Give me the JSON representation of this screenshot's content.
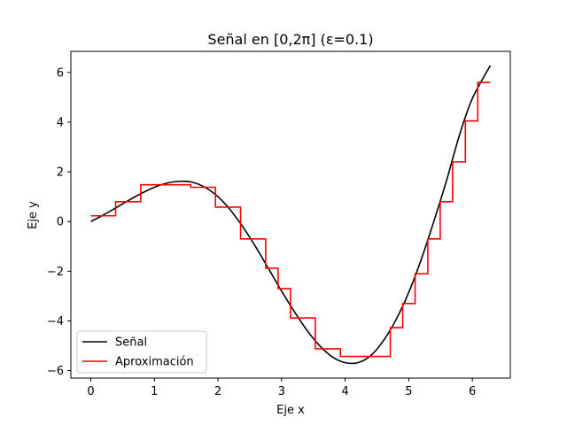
{
  "chart_data": {
    "type": "line",
    "title": "Señal en [0,2π] (ε=0.1)",
    "xlabel": "Eje x",
    "ylabel": "Eje y",
    "xlim": [
      -0.314,
      6.597
    ],
    "ylim": [
      -6.3,
      6.85
    ],
    "xticks": [
      0,
      1,
      2,
      3,
      4,
      5,
      6
    ],
    "yticks": [
      -6,
      -4,
      -2,
      0,
      2,
      4,
      6
    ],
    "grid": false,
    "legend_position": "lower-left",
    "series": [
      {
        "name": "Señal",
        "color": "#000000",
        "style": "smooth",
        "x": [
          0,
          0.2,
          0.4,
          0.6,
          0.8,
          1.0,
          1.2,
          1.4,
          1.6,
          1.8,
          2.0,
          2.2,
          2.4,
          2.6,
          2.8,
          3.0,
          3.2,
          3.4,
          3.6,
          3.8,
          4.0,
          4.2,
          4.4,
          4.6,
          4.8,
          5.0,
          5.2,
          5.4,
          5.6,
          5.8,
          6.0,
          6.283
        ],
        "y": [
          0.0,
          0.27,
          0.56,
          0.86,
          1.14,
          1.38,
          1.55,
          1.62,
          1.58,
          1.37,
          1.0,
          0.45,
          -0.25,
          -1.05,
          -1.92,
          -2.8,
          -3.62,
          -4.38,
          -5.0,
          -5.45,
          -5.68,
          -5.68,
          -5.4,
          -4.8,
          -3.95,
          -2.85,
          -1.5,
          0.05,
          1.7,
          3.5,
          4.95,
          6.28
        ]
      },
      {
        "name": "Aproximación",
        "color": "#ff0000",
        "style": "step",
        "edges": [
          0,
          0.39,
          0.785,
          1.57,
          1.96,
          2.355,
          2.75,
          2.945,
          3.14,
          3.53,
          3.925,
          4.71,
          4.905,
          5.1,
          5.3,
          5.495,
          5.69,
          5.89,
          6.085,
          6.283
        ],
        "values": [
          0.23,
          0.8,
          1.48,
          1.38,
          0.58,
          -0.7,
          -1.88,
          -2.7,
          -3.88,
          -5.12,
          -5.43,
          -4.27,
          -3.3,
          -2.1,
          -0.7,
          0.8,
          2.4,
          4.05,
          5.6
        ]
      }
    ]
  }
}
